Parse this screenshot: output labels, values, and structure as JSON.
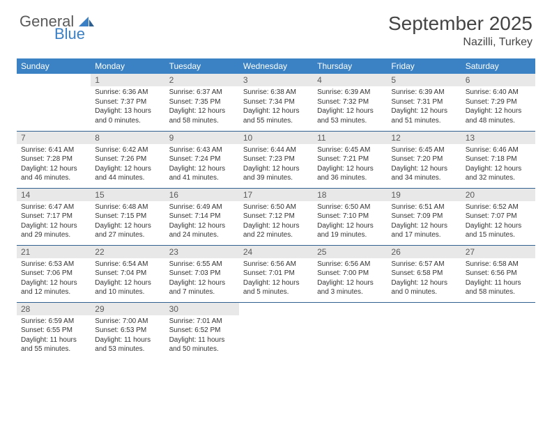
{
  "brand": {
    "word1": "General",
    "word2": "Blue",
    "color1": "#5a5a5a",
    "color2": "#3b7fc4"
  },
  "title": "September 2025",
  "location": "Nazilli, Turkey",
  "header_bg": "#3b82c4",
  "divider_color": "#2f5f8f",
  "daynum_bg": "#e8e8e8",
  "weekdays": [
    "Sunday",
    "Monday",
    "Tuesday",
    "Wednesday",
    "Thursday",
    "Friday",
    "Saturday"
  ],
  "weeks": [
    [
      null,
      {
        "n": "1",
        "sr": "6:36 AM",
        "ss": "7:37 PM",
        "dl": "13 hours and 0 minutes."
      },
      {
        "n": "2",
        "sr": "6:37 AM",
        "ss": "7:35 PM",
        "dl": "12 hours and 58 minutes."
      },
      {
        "n": "3",
        "sr": "6:38 AM",
        "ss": "7:34 PM",
        "dl": "12 hours and 55 minutes."
      },
      {
        "n": "4",
        "sr": "6:39 AM",
        "ss": "7:32 PM",
        "dl": "12 hours and 53 minutes."
      },
      {
        "n": "5",
        "sr": "6:39 AM",
        "ss": "7:31 PM",
        "dl": "12 hours and 51 minutes."
      },
      {
        "n": "6",
        "sr": "6:40 AM",
        "ss": "7:29 PM",
        "dl": "12 hours and 48 minutes."
      }
    ],
    [
      {
        "n": "7",
        "sr": "6:41 AM",
        "ss": "7:28 PM",
        "dl": "12 hours and 46 minutes."
      },
      {
        "n": "8",
        "sr": "6:42 AM",
        "ss": "7:26 PM",
        "dl": "12 hours and 44 minutes."
      },
      {
        "n": "9",
        "sr": "6:43 AM",
        "ss": "7:24 PM",
        "dl": "12 hours and 41 minutes."
      },
      {
        "n": "10",
        "sr": "6:44 AM",
        "ss": "7:23 PM",
        "dl": "12 hours and 39 minutes."
      },
      {
        "n": "11",
        "sr": "6:45 AM",
        "ss": "7:21 PM",
        "dl": "12 hours and 36 minutes."
      },
      {
        "n": "12",
        "sr": "6:45 AM",
        "ss": "7:20 PM",
        "dl": "12 hours and 34 minutes."
      },
      {
        "n": "13",
        "sr": "6:46 AM",
        "ss": "7:18 PM",
        "dl": "12 hours and 32 minutes."
      }
    ],
    [
      {
        "n": "14",
        "sr": "6:47 AM",
        "ss": "7:17 PM",
        "dl": "12 hours and 29 minutes."
      },
      {
        "n": "15",
        "sr": "6:48 AM",
        "ss": "7:15 PM",
        "dl": "12 hours and 27 minutes."
      },
      {
        "n": "16",
        "sr": "6:49 AM",
        "ss": "7:14 PM",
        "dl": "12 hours and 24 minutes."
      },
      {
        "n": "17",
        "sr": "6:50 AM",
        "ss": "7:12 PM",
        "dl": "12 hours and 22 minutes."
      },
      {
        "n": "18",
        "sr": "6:50 AM",
        "ss": "7:10 PM",
        "dl": "12 hours and 19 minutes."
      },
      {
        "n": "19",
        "sr": "6:51 AM",
        "ss": "7:09 PM",
        "dl": "12 hours and 17 minutes."
      },
      {
        "n": "20",
        "sr": "6:52 AM",
        "ss": "7:07 PM",
        "dl": "12 hours and 15 minutes."
      }
    ],
    [
      {
        "n": "21",
        "sr": "6:53 AM",
        "ss": "7:06 PM",
        "dl": "12 hours and 12 minutes."
      },
      {
        "n": "22",
        "sr": "6:54 AM",
        "ss": "7:04 PM",
        "dl": "12 hours and 10 minutes."
      },
      {
        "n": "23",
        "sr": "6:55 AM",
        "ss": "7:03 PM",
        "dl": "12 hours and 7 minutes."
      },
      {
        "n": "24",
        "sr": "6:56 AM",
        "ss": "7:01 PM",
        "dl": "12 hours and 5 minutes."
      },
      {
        "n": "25",
        "sr": "6:56 AM",
        "ss": "7:00 PM",
        "dl": "12 hours and 3 minutes."
      },
      {
        "n": "26",
        "sr": "6:57 AM",
        "ss": "6:58 PM",
        "dl": "12 hours and 0 minutes."
      },
      {
        "n": "27",
        "sr": "6:58 AM",
        "ss": "6:56 PM",
        "dl": "11 hours and 58 minutes."
      }
    ],
    [
      {
        "n": "28",
        "sr": "6:59 AM",
        "ss": "6:55 PM",
        "dl": "11 hours and 55 minutes."
      },
      {
        "n": "29",
        "sr": "7:00 AM",
        "ss": "6:53 PM",
        "dl": "11 hours and 53 minutes."
      },
      {
        "n": "30",
        "sr": "7:01 AM",
        "ss": "6:52 PM",
        "dl": "11 hours and 50 minutes."
      },
      null,
      null,
      null,
      null
    ]
  ],
  "labels": {
    "sunrise": "Sunrise:",
    "sunset": "Sunset:",
    "daylight": "Daylight:"
  }
}
